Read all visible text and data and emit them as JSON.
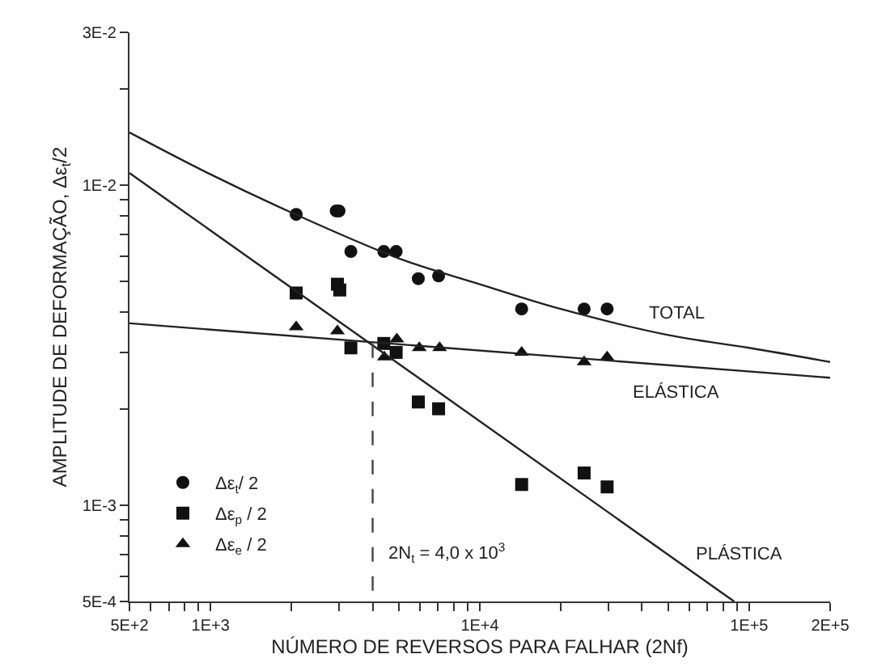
{
  "chart_data": {
    "type": "scatter",
    "xlabel": "NÚMERO DE REVERSOS PARA FALHAR (2Nf)",
    "ylabel": "AMPLITUDE DE DEFORMAÇÃO, Δε$_{t}$/2",
    "log": "xy",
    "legend": "bottom left",
    "xlim": [
      500,
      200000
    ],
    "ylim": [
      0.0005,
      0.03
    ],
    "xticks": [
      {
        "value": 500,
        "label": "5E+2"
      },
      {
        "value": 600,
        "label": null
      },
      {
        "value": 700,
        "label": null
      },
      {
        "value": 800,
        "label": null
      },
      {
        "value": 900,
        "label": null
      },
      {
        "value": 1000,
        "label": "1E+3"
      },
      {
        "value": 2000,
        "label": null
      },
      {
        "value": 3000,
        "label": null
      },
      {
        "value": 4000,
        "label": null
      },
      {
        "value": 5000,
        "label": null
      },
      {
        "value": 6000,
        "label": null
      },
      {
        "value": 7000,
        "label": null
      },
      {
        "value": 8000,
        "label": null
      },
      {
        "value": 9000,
        "label": null
      },
      {
        "value": 10000,
        "label": "1E+4"
      },
      {
        "value": 20000,
        "label": null
      },
      {
        "value": 30000,
        "label": null
      },
      {
        "value": 40000,
        "label": null
      },
      {
        "value": 50000,
        "label": null
      },
      {
        "value": 60000,
        "label": null
      },
      {
        "value": 70000,
        "label": null
      },
      {
        "value": 80000,
        "label": null
      },
      {
        "value": 90000,
        "label": null
      },
      {
        "value": 100000,
        "label": "1E+5"
      },
      {
        "value": 200000,
        "label": "2E+5"
      }
    ],
    "yticks": [
      {
        "value": 0.0005,
        "label": "5E-4"
      },
      {
        "value": 0.0006,
        "label": null
      },
      {
        "value": 0.0007,
        "label": null
      },
      {
        "value": 0.0008,
        "label": null
      },
      {
        "value": 0.0009,
        "label": null
      },
      {
        "value": 0.001,
        "label": "1E-3"
      },
      {
        "value": 0.002,
        "label": null
      },
      {
        "value": 0.003,
        "label": null
      },
      {
        "value": 0.004,
        "label": null
      },
      {
        "value": 0.005,
        "label": null
      },
      {
        "value": 0.006,
        "label": null
      },
      {
        "value": 0.007,
        "label": null
      },
      {
        "value": 0.008,
        "label": null
      },
      {
        "value": 0.009,
        "label": null
      },
      {
        "value": 0.01,
        "label": "1E-2"
      },
      {
        "value": 0.02,
        "label": null
      },
      {
        "value": 0.03,
        "label": "3E-2"
      }
    ],
    "series": [
      {
        "name": "Δε$_{t}$/ 2",
        "color": "#111111",
        "marker": "circle",
        "x": [
          2080,
          2930,
          3000,
          3320,
          4400,
          4890,
          5910,
          7030,
          14300,
          24400,
          29700
        ],
        "values": [
          0.0081,
          0.0083,
          0.0083,
          0.0062,
          0.0062,
          0.0062,
          0.0051,
          0.0052,
          0.0041,
          0.0041,
          0.0041
        ]
      },
      {
        "name": "Δε$_{p}$ / 2",
        "color": "#111111",
        "marker": "square",
        "x": [
          2080,
          2960,
          3020,
          3320,
          4400,
          4890,
          5910,
          7030,
          14300,
          24400,
          29700
        ],
        "values": [
          0.0046,
          0.0049,
          0.0047,
          0.0031,
          0.0032,
          0.003,
          0.0021,
          0.002,
          0.00116,
          0.00126,
          0.00114
        ]
      },
      {
        "name": "Δε$_{e}$ / 2",
        "color": "#111111",
        "marker": "triangle",
        "x": [
          2080,
          2960,
          4420,
          4920,
          5960,
          7090,
          14300,
          24400,
          29700
        ],
        "values": [
          0.0036,
          0.0035,
          0.0029,
          0.0033,
          0.0031,
          0.0031,
          0.003,
          0.0028,
          0.0029
        ]
      },
      {
        "type": "line",
        "name": "TOTAL",
        "color": "#222222",
        "marker": "none",
        "x": [
          500,
          1000,
          2000,
          5000,
          10000,
          20000,
          50000,
          100000,
          200000
        ],
        "values": [
          0.0146,
          0.0108,
          0.0082,
          0.0059,
          0.0049,
          0.0041,
          0.0034,
          0.0031,
          0.0028
        ]
      },
      {
        "type": "line",
        "name": "ELÁSTICA",
        "color": "#222222",
        "marker": "none",
        "x": [
          500,
          200000
        ],
        "values": [
          0.0037,
          0.0025
        ]
      },
      {
        "type": "line",
        "name": "PLÁSTICA",
        "color": "#222222",
        "marker": "none",
        "x": [
          500,
          88000
        ],
        "values": [
          0.0109,
          0.0005
        ]
      },
      {
        "type": "line",
        "color": "#444444",
        "marker": "none",
        "line_style": "dashed",
        "x": [
          4000,
          4000
        ],
        "values": [
          0.0032,
          0.0005
        ]
      }
    ],
    "annotations": [
      "2N$_{t}$ = 4,0 x 10$^{3}$"
    ]
  }
}
